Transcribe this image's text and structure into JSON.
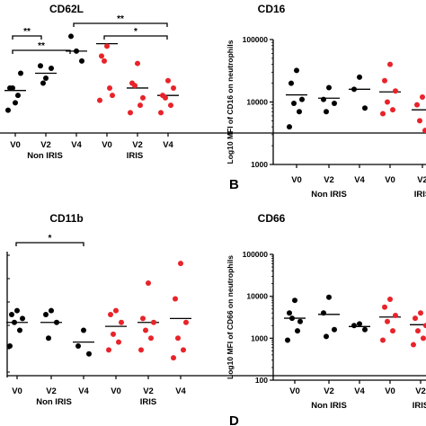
{
  "chart_data": [
    {
      "type": "scatter",
      "title": "CD62L",
      "panel_letter": "",
      "ylabel": "",
      "ylog": false,
      "categories": [
        "V0",
        "V2",
        "V4",
        "V0",
        "V2",
        "V4"
      ],
      "groups": [
        {
          "label": "Non IRIS",
          "span": [
            0,
            2
          ]
        },
        {
          "label": "IRIS",
          "span": [
            3,
            5
          ]
        }
      ],
      "series": [
        {
          "color": "#000000",
          "points": [
            [
              0,
              1.15
            ],
            [
              0,
              1.45
            ],
            [
              0,
              1.75
            ],
            [
              0,
              1.45
            ],
            [
              0,
              1.3
            ],
            [
              0,
              1.0
            ],
            [
              1,
              1.65
            ],
            [
              1,
              1.9
            ],
            [
              1,
              1.85
            ],
            [
              1,
              1.55
            ],
            [
              2,
              2.2
            ],
            [
              2,
              2.5
            ],
            [
              2,
              2.0
            ]
          ]
        },
        {
          "color": "#e8232a",
          "points": [
            [
              3,
              2.3
            ],
            [
              3,
              2.1
            ],
            [
              3,
              1.3
            ],
            [
              3,
              2.0
            ],
            [
              3,
              1.45
            ],
            [
              3,
              1.2
            ],
            [
              4,
              1.95
            ],
            [
              4,
              1.55
            ],
            [
              4,
              1.25
            ],
            [
              4,
              1.5
            ],
            [
              4,
              1.1
            ],
            [
              4,
              0.95
            ],
            [
              5,
              1.6
            ],
            [
              5,
              1.3
            ],
            [
              5,
              1.45
            ],
            [
              5,
              1.25
            ],
            [
              5,
              1.1
            ],
            [
              5,
              0.95
            ]
          ]
        }
      ],
      "means": [
        1.4,
        1.75,
        2.2,
        2.35,
        1.45,
        1.3
      ],
      "significance": [
        {
          "from": 0,
          "to": 1,
          "label": "**"
        },
        {
          "from": 0,
          "to": 2,
          "label": "**"
        },
        {
          "from": 2,
          "to": 5,
          "label": "**"
        },
        {
          "from": 3,
          "to": 5,
          "label": "*"
        }
      ]
    },
    {
      "type": "scatter",
      "title": "CD16",
      "panel_letter": "B",
      "ylabel": "Log10 MFI of CD16 on neutrophils",
      "ylog": true,
      "ylim": [
        1000,
        100000
      ],
      "yticks": [
        "1000",
        "10000",
        "100000"
      ],
      "categories": [
        "V0",
        "V2",
        "V4",
        "V0",
        "V2"
      ],
      "groups": [
        {
          "label": "Non IRIS",
          "span": [
            0,
            2
          ]
        },
        {
          "label": "IRIS",
          "span": [
            3,
            4
          ]
        }
      ],
      "series": [
        {
          "color": "#000000",
          "points": [
            [
              0,
              32000
            ],
            [
              0,
              20000
            ],
            [
              0,
              11000
            ],
            [
              0,
              9500
            ],
            [
              0,
              7000
            ],
            [
              0,
              4000
            ],
            [
              1,
              17000
            ],
            [
              1,
              11000
            ],
            [
              1,
              9500
            ],
            [
              1,
              7000
            ],
            [
              2,
              25000
            ],
            [
              2,
              16000
            ],
            [
              2,
              8000
            ]
          ]
        },
        {
          "color": "#e8232a",
          "points": [
            [
              3,
              40000
            ],
            [
              3,
              22000
            ],
            [
              3,
              15000
            ],
            [
              3,
              10000
            ],
            [
              3,
              7500
            ],
            [
              3,
              6500
            ],
            [
              4,
              12000
            ],
            [
              4,
              9000
            ],
            [
              4,
              7000
            ],
            [
              4,
              5000
            ],
            [
              4,
              3500
            ]
          ]
        }
      ],
      "means": [
        13000,
        11500,
        16000,
        14500,
        7500
      ],
      "significance": []
    },
    {
      "type": "scatter",
      "title": "CD11b",
      "panel_letter": "",
      "ylabel": "",
      "ylog": false,
      "categories": [
        "V0",
        "V2",
        "V4",
        "V0",
        "V2",
        "V4"
      ],
      "groups": [
        {
          "label": "Non IRIS",
          "span": [
            0,
            2
          ]
        },
        {
          "label": "IRIS",
          "span": [
            3,
            5
          ]
        }
      ],
      "series": [
        {
          "color": "#000000",
          "points": [
            [
              0,
              1.35
            ],
            [
              0,
              1.3
            ],
            [
              0,
              1.25
            ],
            [
              0,
              1.2
            ],
            [
              0,
              1.1
            ],
            [
              0,
              0.9
            ],
            [
              1,
              1.35
            ],
            [
              1,
              1.3
            ],
            [
              1,
              1.2
            ],
            [
              1,
              1.0
            ],
            [
              2,
              1.1
            ],
            [
              2,
              0.9
            ],
            [
              2,
              0.8
            ]
          ]
        },
        {
          "color": "#e8232a",
          "points": [
            [
              3,
              1.35
            ],
            [
              3,
              1.3
            ],
            [
              3,
              1.2
            ],
            [
              3,
              1.05
            ],
            [
              3,
              0.95
            ],
            [
              3,
              0.85
            ],
            [
              4,
              1.7
            ],
            [
              4,
              1.25
            ],
            [
              4,
              1.2
            ],
            [
              4,
              1.1
            ],
            [
              4,
              1.0
            ],
            [
              4,
              0.85
            ],
            [
              5,
              1.95
            ],
            [
              5,
              1.5
            ],
            [
              5,
              1.2
            ],
            [
              5,
              1.0
            ],
            [
              5,
              0.85
            ],
            [
              5,
              0.75
            ]
          ]
        }
      ],
      "means": [
        1.2,
        1.2,
        0.95,
        1.15,
        1.2,
        1.25
      ],
      "significance": [
        {
          "from": 0,
          "to": 2,
          "label": "*"
        }
      ]
    },
    {
      "type": "scatter",
      "title": "CD66",
      "panel_letter": "D",
      "ylabel": "Log10 MFI of CD66 on neutrophils",
      "ylog": true,
      "ylim": [
        100,
        100000
      ],
      "yticks": [
        "100",
        "1000",
        "10000",
        "100000"
      ],
      "categories": [
        "V0",
        "V2",
        "V4",
        "V0",
        "V2"
      ],
      "groups": [
        {
          "label": "Non IRIS",
          "span": [
            0,
            2
          ]
        },
        {
          "label": "IRIS",
          "span": [
            3,
            4
          ]
        }
      ],
      "series": [
        {
          "color": "#000000",
          "points": [
            [
              0,
              8000
            ],
            [
              0,
              4000
            ],
            [
              0,
              2500
            ],
            [
              0,
              3000
            ],
            [
              0,
              1500
            ],
            [
              0,
              900
            ],
            [
              1,
              9500
            ],
            [
              1,
              4000
            ],
            [
              1,
              1600
            ],
            [
              1,
              1100
            ],
            [
              2,
              2200
            ],
            [
              2,
              2000
            ],
            [
              2,
              1600
            ]
          ]
        },
        {
          "color": "#e8232a",
          "points": [
            [
              3,
              8500
            ],
            [
              3,
              5500
            ],
            [
              3,
              3500
            ],
            [
              3,
              2500
            ],
            [
              3,
              1500
            ],
            [
              3,
              900
            ],
            [
              4,
              4000
            ],
            [
              4,
              3000
            ],
            [
              4,
              2000
            ],
            [
              4,
              1500
            ],
            [
              4,
              1000
            ],
            [
              4,
              700
            ]
          ]
        }
      ],
      "means": [
        3000,
        3700,
        1900,
        3200,
        2100
      ],
      "significance": []
    }
  ]
}
